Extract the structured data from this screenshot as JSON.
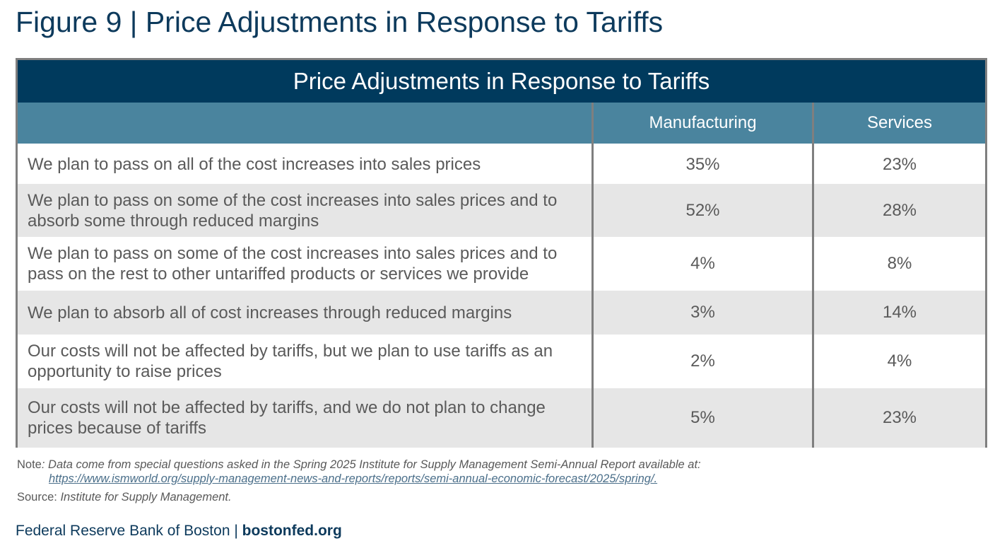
{
  "figure_title": "Figure 9 | Price Adjustments in Response to Tariffs",
  "table": {
    "title": "Price Adjustments in Response to Tariffs",
    "columns": [
      "",
      "Manufacturing",
      "Services"
    ],
    "rows": [
      {
        "label": "We plan to pass on all of the cost increases into sales prices",
        "manufacturing": "35%",
        "services": "23%"
      },
      {
        "label": "We plan to pass on some of the cost increases into sales prices and to absorb some through reduced margins",
        "manufacturing": "52%",
        "services": "28%"
      },
      {
        "label": "We plan to pass on some of the cost increases into sales prices and to pass on the rest to other untariffed products or services we provide",
        "manufacturing": "4%",
        "services": "8%"
      },
      {
        "label": "We plan to absorb all of cost increases through reduced margins",
        "manufacturing": "3%",
        "services": "14%"
      },
      {
        "label": "Our costs will not be affected by tariffs, but we plan to use tariffs as an opportunity to raise prices",
        "manufacturing": "2%",
        "services": "4%"
      },
      {
        "label": "Our costs will not be affected by tariffs, and we do not plan to change prices because of tariffs",
        "manufacturing": "5%",
        "services": "23%"
      }
    ]
  },
  "note": {
    "label": "Note",
    "text": ": Data come from special questions asked in the Spring 2025 Institute for Supply Management Semi-Annual Report available at:",
    "link": "https://www.ismworld.org/supply-management-news-and-reports/reports/semi-annual-economic-forecast/2025/spring/."
  },
  "source": {
    "label": "Source:",
    "text": "Institute for Supply Management."
  },
  "footer": {
    "org": "Federal Reserve Bank of Boston | ",
    "site": "bostonfed.org"
  },
  "colors": {
    "title_bar": "#003a5d",
    "header_bar": "#4a849e",
    "alt_row": "#e6e6e6",
    "heading_text": "#0d3a5c"
  }
}
